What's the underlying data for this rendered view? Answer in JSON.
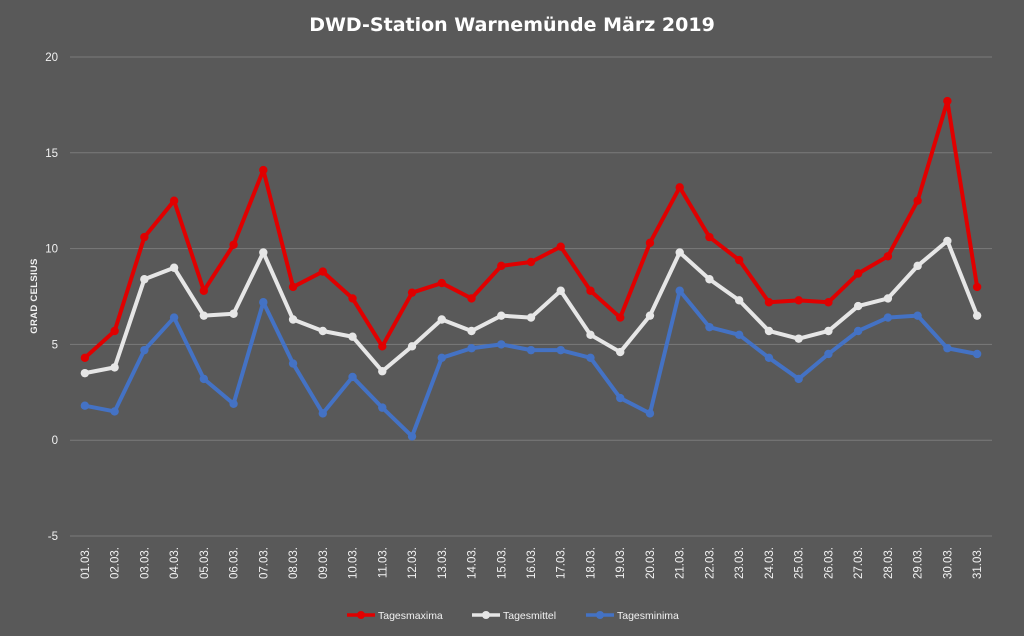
{
  "chart_data": {
    "type": "line",
    "title": "DWD-Station Warnemünde März 2019",
    "xlabel": "",
    "ylabel": "GRAD CELSIUS",
    "ylim": [
      -5,
      20
    ],
    "yticks": [
      -5,
      0,
      5,
      10,
      15,
      20
    ],
    "grid": true,
    "legend_position": "bottom",
    "categories": [
      "01.03.",
      "02.03.",
      "03.03.",
      "04.03.",
      "05.03.",
      "06.03.",
      "07.03.",
      "08.03.",
      "09.03.",
      "10.03.",
      "11.03.",
      "12.03.",
      "13.03.",
      "14.03.",
      "15.03.",
      "16.03.",
      "17.03.",
      "18.03.",
      "19.03.",
      "20.03.",
      "21.03.",
      "22.03.",
      "23.03.",
      "24.03.",
      "25.03.",
      "26.03.",
      "27.03.",
      "28.03.",
      "29.03.",
      "30.03.",
      "31.03."
    ],
    "series": [
      {
        "name": "Tagesmaxima",
        "color": "#e00000",
        "values": [
          4.3,
          5.7,
          10.6,
          12.5,
          7.8,
          10.2,
          14.1,
          8.0,
          8.8,
          7.4,
          4.9,
          7.7,
          8.2,
          7.4,
          9.1,
          9.3,
          10.1,
          7.8,
          6.4,
          10.3,
          13.2,
          10.6,
          9.4,
          7.2,
          7.3,
          7.2,
          8.7,
          9.6,
          12.5,
          17.7,
          8.0
        ]
      },
      {
        "name": "Tagesmittel",
        "color": "#e6e6e6",
        "values": [
          3.5,
          3.8,
          8.4,
          9.0,
          6.5,
          6.6,
          9.8,
          6.3,
          5.7,
          5.4,
          3.6,
          4.9,
          6.3,
          5.7,
          6.5,
          6.4,
          7.8,
          5.5,
          4.6,
          6.5,
          9.8,
          8.4,
          7.3,
          5.7,
          5.3,
          5.7,
          7.0,
          7.4,
          9.1,
          10.4,
          6.5
        ]
      },
      {
        "name": "Tagesminima",
        "color": "#4472c4",
        "values": [
          1.8,
          1.5,
          4.7,
          6.4,
          3.2,
          1.9,
          7.2,
          4.0,
          1.4,
          3.3,
          1.7,
          0.2,
          4.3,
          4.8,
          5.0,
          4.7,
          4.7,
          4.3,
          2.2,
          1.4,
          7.8,
          5.9,
          5.5,
          4.3,
          3.2,
          4.5,
          5.7,
          6.4,
          6.5,
          4.8,
          4.5
        ]
      }
    ]
  }
}
